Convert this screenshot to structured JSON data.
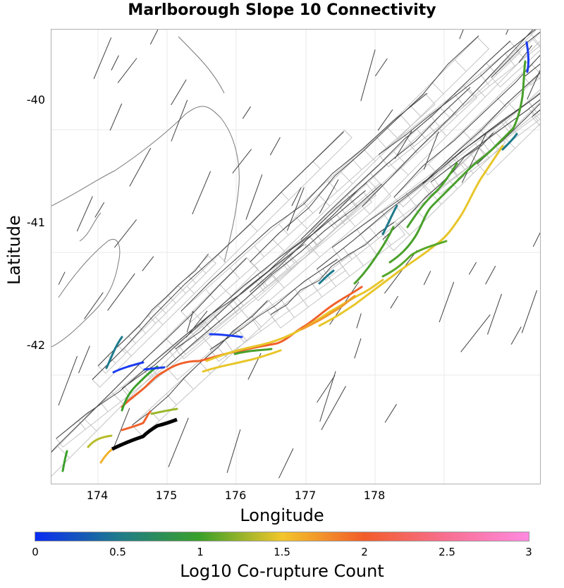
{
  "title": "Marlborough Slope 10 Connectivity",
  "axes": {
    "xlabel": "Longitude",
    "ylabel": "Latitude",
    "xticks": [
      "174",
      "175",
      "176",
      "177",
      "178"
    ],
    "yticks": [
      "-40",
      "-41",
      "-42"
    ]
  },
  "colorbar": {
    "label": "Log10 Co-rupture Count",
    "ticks": [
      "0",
      "0.5",
      "1",
      "1.5",
      "2",
      "2.5",
      "3"
    ],
    "colors": [
      "#0a2cf2",
      "#1f7a8c",
      "#3aa02a",
      "#f2c62a",
      "#f25c2a",
      "#f76f91",
      "#ff8ae0"
    ]
  },
  "colors": {
    "fault_trace": "#3a3a3a",
    "patch_outline": "#bdbdbd",
    "coast": "#6a6a6a",
    "source_fault": "#000000"
  }
}
